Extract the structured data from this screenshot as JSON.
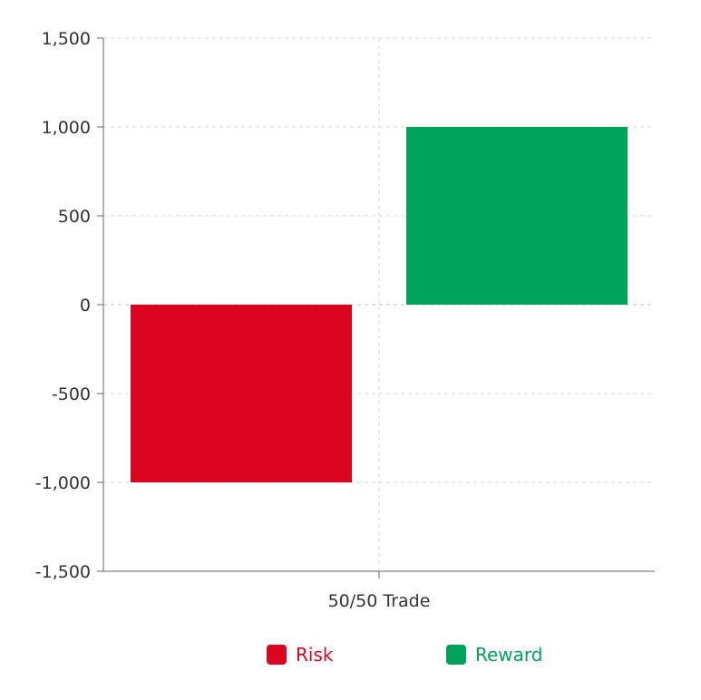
{
  "chart_data": {
    "type": "bar",
    "categories": [
      "50/50 Trade"
    ],
    "series": [
      {
        "name": "Risk",
        "values": [
          -1000
        ],
        "color": "#dc0520"
      },
      {
        "name": "Reward",
        "values": [
          1000
        ],
        "color": "#00a35c"
      }
    ],
    "title": "",
    "xlabel": "",
    "ylabel": "",
    "ylim": [
      -1500,
      1500
    ],
    "yticks": [
      1500,
      1000,
      500,
      0,
      -500,
      -1000,
      -1500
    ],
    "ytick_labels": [
      "1,500",
      "1,000",
      "500",
      "0",
      "-500",
      "-1,000",
      "-1,500"
    ],
    "grid": true,
    "legend": "bottom-center"
  }
}
